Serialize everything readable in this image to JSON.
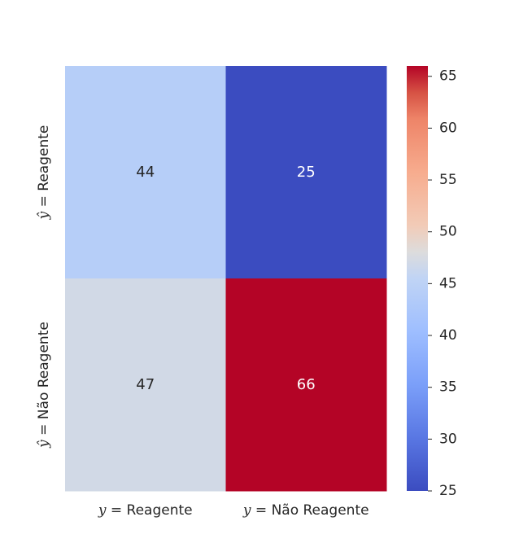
{
  "chart_data": {
    "type": "heatmap",
    "title": "",
    "xlabel": "",
    "ylabel": "",
    "x_tick_labels": [
      {
        "var": "y",
        "rest": "=  Reagente"
      },
      {
        "var": "y",
        "rest": "=  Não Reagente"
      }
    ],
    "y_tick_labels": [
      {
        "var": "ŷ",
        "rest": "=  Reagente"
      },
      {
        "var": "ŷ",
        "rest": "=  Não Reagente"
      }
    ],
    "matrix": [
      [
        44,
        25
      ],
      [
        47,
        66
      ]
    ],
    "colormap": "coolwarm",
    "colorbar": {
      "min": 25,
      "max": 66,
      "ticks": [
        25,
        30,
        35,
        40,
        45,
        50,
        55,
        60,
        65
      ],
      "tick_labels": [
        "25",
        "30",
        "35",
        "40",
        "45",
        "50",
        "55",
        "60",
        "65"
      ]
    },
    "colors": {
      "low": "#3b4cc0",
      "high": "#b40426",
      "text_dark": "#262626",
      "text_light": "#ffffff"
    }
  }
}
